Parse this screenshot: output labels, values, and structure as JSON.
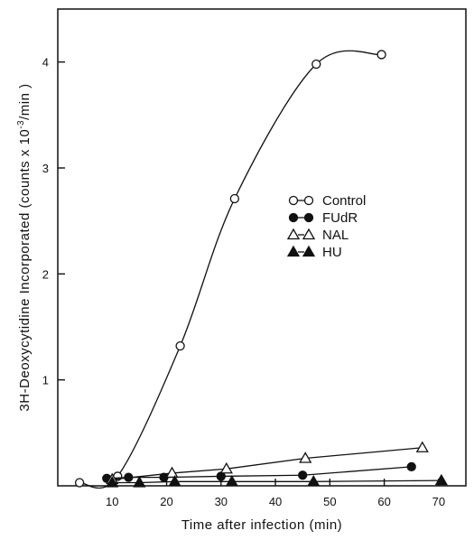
{
  "chart_data": {
    "type": "line",
    "xlabel": "Time after infection  (min)",
    "ylabel": "3H-Deoxycytidine  Incorporated  (counts x 10-3/min)",
    "ylabel_parts": {
      "before": "3H-Deoxycytidine  Incorporated  (counts x 10",
      "sup": "-3",
      "after": "/min )"
    },
    "xlim": [
      0,
      75
    ],
    "ylim": [
      0,
      4.5
    ],
    "x_ticks": [
      10,
      20,
      30,
      40,
      50,
      60,
      70
    ],
    "y_ticks": [
      1,
      2,
      3,
      4
    ],
    "grid": false,
    "legend_position": "right-middle",
    "series": [
      {
        "name": "Control",
        "marker": "circle-open",
        "x": [
          4,
          11,
          22.5,
          32.5,
          47.5,
          59.5
        ],
        "y": [
          0.03,
          0.09,
          1.32,
          2.71,
          3.98,
          4.07
        ]
      },
      {
        "name": "FUdR",
        "marker": "circle-filled",
        "x": [
          9,
          13,
          19.5,
          30,
          45,
          65
        ],
        "y": [
          0.07,
          0.08,
          0.08,
          0.09,
          0.1,
          0.18
        ]
      },
      {
        "name": "NAL",
        "marker": "triangle-open",
        "x": [
          10,
          21,
          31,
          45.5,
          67
        ],
        "y": [
          0.06,
          0.12,
          0.16,
          0.26,
          0.36
        ]
      },
      {
        "name": "HU",
        "marker": "triangle-filled",
        "x": [
          10,
          15,
          21.5,
          32,
          47,
          70.5
        ],
        "y": [
          0.03,
          0.03,
          0.04,
          0.04,
          0.04,
          0.05
        ]
      }
    ]
  }
}
